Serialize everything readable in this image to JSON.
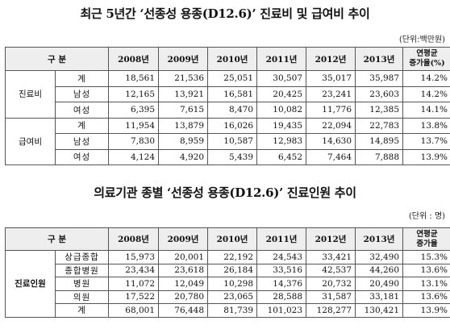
{
  "title1": "최근 5년간 ‘선종성 용종(D12.6)’ 진료비 및 급여비 추이",
  "unit1": "(단위:백만원)",
  "table1": {
    "header": {
      "category": "구 분",
      "years": [
        "2008년",
        "2009년",
        "2010년",
        "2011년",
        "2012년",
        "2013년"
      ],
      "growth_line1": "연평균",
      "growth_line2": "증가율(%)"
    },
    "groups": [
      {
        "label": "진료비",
        "rows": [
          {
            "sub": "계",
            "values": [
              "18,561",
              "21,536",
              "25,051",
              "30,507",
              "35,017",
              "35,987"
            ],
            "growth": "14.2%"
          },
          {
            "sub": "남성",
            "values": [
              "12,165",
              "13,921",
              "16,581",
              "20,425",
              "23,241",
              "23,603"
            ],
            "growth": "14.2%"
          },
          {
            "sub": "여성",
            "values": [
              "6,395",
              "7,615",
              "8,470",
              "10,082",
              "11,776",
              "12,385"
            ],
            "growth": "14.1%"
          }
        ]
      },
      {
        "label": "급여비",
        "rows": [
          {
            "sub": "계",
            "values": [
              "11,954",
              "13,879",
              "16,026",
              "19,435",
              "22,094",
              "22,783"
            ],
            "growth": "13.8%"
          },
          {
            "sub": "남성",
            "values": [
              "7,830",
              "8,959",
              "10,587",
              "12,983",
              "14,630",
              "14,895"
            ],
            "growth": "13.7%"
          },
          {
            "sub": "여성",
            "values": [
              "4,124",
              "4,920",
              "5,439",
              "6,452",
              "7,464",
              "7,888"
            ],
            "growth": "13.9%"
          }
        ]
      }
    ]
  },
  "title2": "의료기관 종별 ‘선종성 용종(D12.6)’ 진료인원 추이",
  "unit2": "(단위 : 명)",
  "table2": {
    "header": {
      "category": "구 분",
      "years": [
        "2008년",
        "2009년",
        "2010년",
        "2011년",
        "2012년",
        "2013년"
      ],
      "growth_line1": "연평균",
      "growth_line2": "증가율"
    },
    "group_label": "진료인원",
    "rows": [
      {
        "sub": "상급종합",
        "values": [
          "15,973",
          "20,001",
          "22,192",
          "24,543",
          "33,421",
          "32,490"
        ],
        "growth": "15.3%"
      },
      {
        "sub": "종합병원",
        "values": [
          "23,434",
          "23,618",
          "26,184",
          "33,516",
          "42,537",
          "44,260"
        ],
        "growth": "13.6%"
      },
      {
        "sub": "병원",
        "values": [
          "11,072",
          "12,049",
          "10,298",
          "14,376",
          "20,732",
          "20,490"
        ],
        "growth": "13.1%"
      },
      {
        "sub": "의원",
        "values": [
          "17,522",
          "20,780",
          "23,065",
          "28,588",
          "31,587",
          "33,181"
        ],
        "growth": "13.6%"
      },
      {
        "sub": "계",
        "values": [
          "68,001",
          "76,448",
          "81,739",
          "101,023",
          "128,277",
          "130,421"
        ],
        "growth": "13.9%"
      }
    ]
  }
}
